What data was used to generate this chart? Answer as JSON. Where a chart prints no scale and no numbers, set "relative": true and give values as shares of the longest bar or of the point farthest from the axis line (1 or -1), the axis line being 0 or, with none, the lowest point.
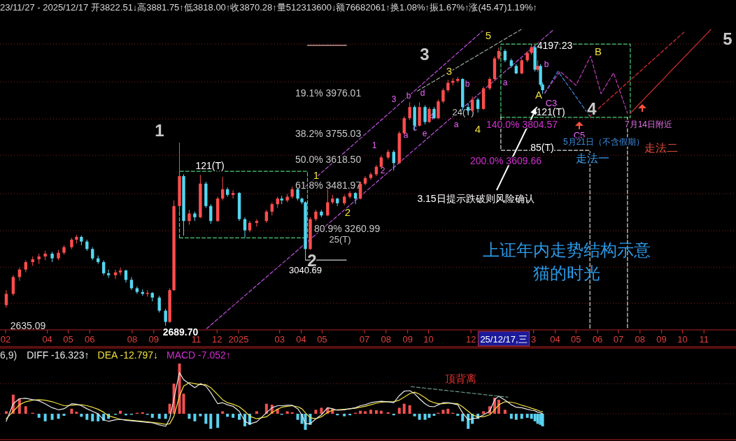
{
  "chart_data": [
    {
      "type": "candlestick",
      "title": "23/11/27 - 2025/12/17 开3822.51↓高3881.75↑低3818.00↑收3870.28↑量512313600↓额76682061↑换1.08%↑振1.67%↑涨(45.47)1.19%↑",
      "x": [
        "2024-02-02",
        "2024-02-12",
        "2024-02-21",
        "2024-03-01",
        "2024-03-11",
        "2024-03-20",
        "2024-03-29",
        "2024-04-08",
        "2024-04-17",
        "2024-04-25",
        "2024-05-06",
        "2024-05-13",
        "2024-05-20",
        "2024-05-28",
        "2024-06-05",
        "2024-06-13",
        "2024-06-21",
        "2024-06-28",
        "2024-07-08",
        "2024-07-15",
        "2024-07-23",
        "2024-07-31",
        "2024-08-08",
        "2024-08-16",
        "2024-08-23",
        "2024-08-30",
        "2024-09-09",
        "2024-09-18",
        "2024-09-24",
        "2024-09-30",
        "2024-10-08",
        "2024-10-14",
        "2024-10-22",
        "2024-10-30",
        "2024-11-07",
        "2024-11-15",
        "2024-11-22",
        "2024-12-02",
        "2024-12-09",
        "2024-12-16",
        "2024-12-24",
        "2025-01-02",
        "2025-01-10",
        "2025-01-17",
        "2025-01-27",
        "2025-02-10",
        "2025-02-18",
        "2025-02-26",
        "2025-03-04",
        "2025-03-12",
        "2025-03-19",
        "2025-03-27",
        "2025-04-02",
        "2025-04-07",
        "2025-04-14",
        "2025-04-22",
        "2025-04-30",
        "2025-05-09",
        "2025-05-16",
        "2025-05-23",
        "2025-06-02",
        "2025-06-10",
        "2025-06-18",
        "2025-06-25",
        "2025-07-02",
        "2025-07-10",
        "2025-07-18",
        "2025-07-25",
        "2025-08-04",
        "2025-08-12",
        "2025-08-20",
        "2025-08-27",
        "2025-09-04",
        "2025-09-11",
        "2025-09-18",
        "2025-09-26",
        "2025-10-02",
        "2025-10-09",
        "2025-10-15",
        "2025-10-22",
        "2025-10-29",
        "2025-11-05",
        "2025-11-12",
        "2025-11-19",
        "2025-11-27",
        "2025-12-03",
        "2025-12-11",
        "2025-12-19",
        "2025-12-28",
        "2026-01-04",
        "2026-01-10",
        "2026-01-19",
        "2026-01-28",
        "2026-02-04",
        "2026-02-12",
        "2026-02-20",
        "2026-02-26",
        "2026-03-03",
        "2026-03-07",
        "2026-03-11",
        "2026-03-14"
      ],
      "ohlc": [
        [
          2800,
          2880,
          2786,
          2860
        ],
        [
          2860,
          2960,
          2850,
          2950
        ],
        [
          2950,
          3000,
          2930,
          2990
        ],
        [
          2990,
          3040,
          2975,
          3030
        ],
        [
          3030,
          3060,
          3010,
          3045
        ],
        [
          3045,
          3075,
          3020,
          3060
        ],
        [
          3060,
          3090,
          3040,
          3075
        ],
        [
          3075,
          3085,
          3030,
          3050
        ],
        [
          3050,
          3095,
          3040,
          3080
        ],
        [
          3080,
          3120,
          3070,
          3110
        ],
        [
          3110,
          3160,
          3100,
          3150
        ],
        [
          3150,
          3175,
          3130,
          3165
        ],
        [
          3165,
          3172,
          3120,
          3140
        ],
        [
          3140,
          3150,
          3090,
          3100
        ],
        [
          3100,
          3110,
          3040,
          3050
        ],
        [
          3050,
          3065,
          3020,
          3030
        ],
        [
          3030,
          3040,
          2960,
          2970
        ],
        [
          2970,
          2990,
          2945,
          2960
        ],
        [
          2960,
          2990,
          2940,
          2975
        ],
        [
          2975,
          3000,
          2960,
          2985
        ],
        [
          2985,
          2990,
          2920,
          2935
        ],
        [
          2935,
          2950,
          2880,
          2890
        ],
        [
          2890,
          2900,
          2860,
          2870
        ],
        [
          2870,
          2885,
          2850,
          2860
        ],
        [
          2860,
          2880,
          2845,
          2865
        ],
        [
          2865,
          2870,
          2820,
          2840
        ],
        [
          2840,
          2850,
          2760,
          2770
        ],
        [
          2770,
          2780,
          2689.7,
          2710
        ],
        [
          2710,
          2890,
          2705,
          2880
        ],
        [
          2880,
          3360,
          2875,
          3330
        ],
        [
          3330,
          3670,
          3300,
          3490
        ],
        [
          3490,
          3500,
          3172,
          3250
        ],
        [
          3250,
          3310,
          3230,
          3290
        ],
        [
          3290,
          3300,
          3250,
          3270
        ],
        [
          3270,
          3497,
          3265,
          3450
        ],
        [
          3450,
          3460,
          3320,
          3330
        ],
        [
          3330,
          3340,
          3235,
          3250
        ],
        [
          3250,
          3380,
          3245,
          3370
        ],
        [
          3370,
          3486,
          3360,
          3420
        ],
        [
          3420,
          3430,
          3380,
          3390
        ],
        [
          3390,
          3415,
          3370,
          3400
        ],
        [
          3400,
          3405,
          3250,
          3260
        ],
        [
          3260,
          3270,
          3160,
          3200
        ],
        [
          3200,
          3250,
          3190,
          3240
        ],
        [
          3240,
          3260,
          3220,
          3250
        ],
        [
          3250,
          3310,
          3240,
          3300
        ],
        [
          3300,
          3350,
          3280,
          3340
        ],
        [
          3340,
          3380,
          3320,
          3370
        ],
        [
          3370,
          3385,
          3340,
          3360
        ],
        [
          3360,
          3395,
          3350,
          3380
        ],
        [
          3380,
          3434,
          3370,
          3420
        ],
        [
          3420,
          3425,
          3360,
          3370
        ],
        [
          3370,
          3375,
          3340,
          3350
        ],
        [
          3350,
          3355,
          3040.69,
          3100
        ],
        [
          3100,
          3270,
          3095,
          3260
        ],
        [
          3260,
          3310,
          3250,
          3300
        ],
        [
          3300,
          3310,
          3270,
          3280
        ],
        [
          3280,
          3420,
          3275,
          3350
        ],
        [
          3350,
          3390,
          3340,
          3370
        ],
        [
          3370,
          3375,
          3330,
          3345
        ],
        [
          3345,
          3390,
          3335,
          3380
        ],
        [
          3380,
          3410,
          3370,
          3400
        ],
        [
          3400,
          3405,
          3340,
          3370
        ],
        [
          3370,
          3460,
          3365,
          3450
        ],
        [
          3450,
          3490,
          3440,
          3480
        ],
        [
          3480,
          3510,
          3470,
          3500
        ],
        [
          3500,
          3550,
          3490,
          3540
        ],
        [
          3540,
          3600,
          3530,
          3590
        ],
        [
          3590,
          3632,
          3580,
          3620
        ],
        [
          3620,
          3630,
          3520,
          3560
        ],
        [
          3560,
          3730,
          3555,
          3720
        ],
        [
          3720,
          3810,
          3710,
          3800
        ],
        [
          3800,
          3886,
          3790,
          3860
        ],
        [
          3860,
          3870,
          3737,
          3760
        ],
        [
          3760,
          3886,
          3755,
          3860
        ],
        [
          3860,
          3870,
          3767,
          3780
        ],
        [
          3780,
          3860,
          3775,
          3850
        ],
        [
          3850,
          3860,
          3796,
          3800
        ],
        [
          3800,
          3900,
          3795,
          3890
        ],
        [
          3890,
          3960,
          3880,
          3950
        ],
        [
          3950,
          4006,
          3940,
          3990
        ],
        [
          3990,
          4015,
          3975,
          4000
        ],
        [
          4000,
          4021,
          3990,
          4010
        ],
        [
          4010,
          4015,
          3841,
          3860
        ],
        [
          3860,
          3880,
          3826,
          3840
        ],
        [
          3840,
          3916,
          3835,
          3900
        ],
        [
          3900,
          3910,
          3830,
          3850
        ],
        [
          3850,
          3970,
          3845,
          3960
        ],
        [
          3960,
          4020,
          3950,
          4010
        ],
        [
          4010,
          4130,
          4000,
          4120
        ],
        [
          4120,
          4178,
          4110,
          4160
        ],
        [
          4160,
          4170,
          4100,
          4110
        ],
        [
          4110,
          4120,
          4070,
          4080
        ],
        [
          4080,
          4090,
          4036,
          4040
        ],
        [
          4040,
          4120,
          4035,
          4110
        ],
        [
          4110,
          4160,
          4100,
          4150
        ],
        [
          4150,
          4197.23,
          4140,
          4180
        ],
        [
          4180,
          4190,
          4050,
          4060
        ],
        [
          4060,
          4110,
          4050,
          4080
        ],
        [
          4080,
          4090,
          3970,
          3980
        ],
        [
          3980,
          3990,
          3930,
          3950
        ]
      ],
      "colors": [
        "#ff4d4d",
        "#ff4d4d",
        "#ff4d4d",
        "#ff4d4d",
        "#ff4d4d",
        "#ff4d4d",
        "#ff4d4d",
        "#54d6f0",
        "#ff4d4d",
        "#ff4d4d",
        "#ff4d4d",
        "#ff4d4d",
        "#54d6f0",
        "#54d6f0",
        "#54d6f0",
        "#54d6f0",
        "#54d6f0",
        "#54d6f0",
        "#ff4d4d",
        "#ff4d4d",
        "#54d6f0",
        "#54d6f0",
        "#54d6f0",
        "#54d6f0",
        "#ff4d4d",
        "#54d6f0",
        "#54d6f0",
        "#54d6f0",
        "#ff4d4d",
        "#ff4d4d",
        "#ff4d4d",
        "#54d6f0",
        "#ff4d4d",
        "#54d6f0",
        "#ff4d4d",
        "#54d6f0",
        "#54d6f0",
        "#ff4d4d",
        "#ff4d4d",
        "#54d6f0",
        "#ff4d4d",
        "#54d6f0",
        "#54d6f0",
        "#ff4d4d",
        "#ff4d4d",
        "#ff4d4d",
        "#ff4d4d",
        "#ff4d4d",
        "#54d6f0",
        "#ff4d4d",
        "#ff4d4d",
        "#54d6f0",
        "#54d6f0",
        "#54d6f0",
        "#ff4d4d",
        "#ff4d4d",
        "#54d6f0",
        "#ff4d4d",
        "#ff4d4d",
        "#54d6f0",
        "#ff4d4d",
        "#ff4d4d",
        "#54d6f0",
        "#ff4d4d",
        "#ff4d4d",
        "#ff4d4d",
        "#ff4d4d",
        "#ff4d4d",
        "#ff4d4d",
        "#54d6f0",
        "#ff4d4d",
        "#ff4d4d",
        "#ff4d4d",
        "#54d6f0",
        "#ff4d4d",
        "#54d6f0",
        "#ff4d4d",
        "#54d6f0",
        "#ff4d4d",
        "#ff4d4d",
        "#ff4d4d",
        "#ff4d4d",
        "#ff4d4d",
        "#54d6f0",
        "#54d6f0",
        "#ff4d4d",
        "#54d6f0",
        "#ff4d4d",
        "#ff4d4d",
        "#ff4d4d",
        "#ff4d4d",
        "#54d6f0",
        "#54d6f0",
        "#54d6f0",
        "#ff4d4d",
        "#ff4d4d",
        "#ff4d4d",
        "#54d6f0",
        "#ff4d4d",
        "#54d6f0",
        "#54d6f0"
      ],
      "xlim": [
        "2024-01-24",
        "2026-12-17"
      ],
      "xticks": [
        {
          "value": "2024-02-01",
          "label": "02"
        },
        {
          "value": "2024-04-01",
          "label": "04"
        },
        {
          "value": "2024-05-01",
          "label": "05"
        },
        {
          "value": "2024-06-01",
          "label": "06"
        },
        {
          "value": "2024-08-01",
          "label": "08"
        },
        {
          "value": "2024-09-01",
          "label": "09"
        },
        {
          "value": "2024-11-01",
          "label": "11"
        },
        {
          "value": "2024-12-01",
          "label": "12"
        },
        {
          "value": "2025-01-01",
          "label": "2025"
        },
        {
          "value": "2025-03-01",
          "label": "03"
        },
        {
          "value": "2025-04-01",
          "label": "04"
        },
        {
          "value": "2025-05-01",
          "label": "05"
        },
        {
          "value": "2025-07-01",
          "label": "07"
        },
        {
          "value": "2025-08-01",
          "label": "08"
        },
        {
          "value": "2025-09-01",
          "label": "09"
        },
        {
          "value": "2025-10-01",
          "label": "10"
        },
        {
          "value": "2025-12-01",
          "label": "12"
        },
        {
          "value": "2026-03-01",
          "label": "3"
        },
        {
          "value": "2026-04-01",
          "label": "04"
        },
        {
          "value": "2026-05-01",
          "label": "05"
        },
        {
          "value": "2026-06-01",
          "label": "06"
        },
        {
          "value": "2026-07-01",
          "label": "07"
        },
        {
          "value": "2026-08-01",
          "label": "08"
        },
        {
          "value": "2026-09-01",
          "label": "09"
        },
        {
          "value": "2026-10-01",
          "label": "10"
        },
        {
          "value": "2026-11-01",
          "label": "11"
        }
      ],
      "yticks": [
        {
          "value": 2809,
          "label": null
        },
        {
          "value": 3003,
          "label": null
        },
        {
          "value": 3198,
          "label": null
        },
        {
          "value": 3396,
          "label": null
        },
        {
          "value": 3602,
          "label": null
        },
        {
          "value": 3796,
          "label": null
        },
        {
          "value": 3995,
          "label": null
        },
        {
          "value": 4197,
          "label": null
        }
      ],
      "grid": "y",
      "tick_labels": "x",
      "series": [
        {
          "type": "line",
          "color": "#c050e0",
          "line_style": "dashed",
          "x": [
            "2024-11-16",
            "2026-03-30"
          ],
          "values": [
            2674,
            4275
          ]
        },
        {
          "type": "line",
          "color": "#c050e0",
          "line_style": "dashed",
          "x": [
            "2025-04-06",
            "2025-12-18"
          ],
          "values": [
            3430,
            4268
          ]
        },
        {
          "type": "line",
          "color": "#9aa89a",
          "line_style": "dashed",
          "x": [
            "2025-09-15",
            "2026-02-11"
          ],
          "values": [
            3946,
            4275
          ]
        },
        {
          "type": "line",
          "color": "#4ad07a",
          "line_style": "dashed",
          "x": [
            "2024-10-08",
            "2024-10-08",
            "2025-04-10",
            "2025-04-10"
          ],
          "values": [
            3160,
            3516,
            3516,
            3160
          ]
        },
        {
          "type": "line",
          "color": "#4ad07a",
          "line_style": "dashed",
          "x": [
            "2024-10-08",
            "2025-04-10"
          ],
          "values": [
            3160,
            3160
          ]
        },
        {
          "type": "line",
          "color": "#4ad07a",
          "line_style": "dashed",
          "x": [
            "2026-01-13",
            "2026-01-13",
            "2026-07-18",
            "2026-07-18"
          ],
          "values": [
            3805,
            4197,
            4197,
            3805
          ]
        },
        {
          "type": "line",
          "color": "#4ad07a",
          "line_style": "dashed",
          "x": [
            "2026-01-13",
            "2026-07-18"
          ],
          "values": [
            3805,
            3805
          ]
        },
        {
          "type": "line",
          "color": "#e0e0e0",
          "line_style": "dashed",
          "x": [
            "2026-01-13",
            "2026-01-13",
            "2026-05-21",
            "2026-05-21"
          ],
          "values": [
            3805,
            3628,
            3628,
            2670
          ]
        },
        {
          "type": "line",
          "color": "#e0e0e0",
          "line_style": "dashed",
          "x": [
            "2026-07-14",
            "2026-07-14"
          ],
          "values": [
            3805,
            2670
          ]
        },
        {
          "type": "line",
          "color": "#d0d0d0",
          "line_style": "solid",
          "x": [
            "2025-04-07",
            "2025-06-05"
          ],
          "values": [
            3041,
            3041
          ]
        },
        {
          "type": "line",
          "color": "#f0b0b0",
          "line_style": "solid",
          "x": [
            "2025-04-10",
            "2025-06-05"
          ],
          "values": [
            4190,
            4190
          ]
        },
        {
          "type": "line",
          "color": "#3c8ce0",
          "line_style": "dashed",
          "x": [
            "2026-03-17",
            "2026-04-05",
            "2026-05-21"
          ],
          "values": [
            3935,
            4051,
            3810
          ]
        },
        {
          "type": "line",
          "color": "#c040c0",
          "line_style": "dashed",
          "x": [
            "2026-03-17",
            "2026-04-08",
            "2026-05-01",
            "2026-05-22",
            "2026-06-06",
            "2026-06-24",
            "2026-07-14"
          ],
          "values": [
            3935,
            4051,
            3976,
            4133,
            3931,
            4043,
            3826
          ]
        },
        {
          "type": "line",
          "color": "#e03030",
          "line_style": "solid",
          "x": [
            "2026-07-18",
            "2026-11-11"
          ],
          "values": [
            3826,
            4275
          ]
        },
        {
          "type": "line",
          "color": "#e03030",
          "line_style": "dashed",
          "x": [
            "2026-05-21",
            "2026-10-03"
          ],
          "values": [
            3811,
            4260
          ]
        }
      ],
      "annotations": [
        "1",
        "2",
        "3",
        "4",
        "5",
        "1",
        "2",
        "3",
        "4",
        "5",
        "A",
        "B",
        "1",
        "2",
        "3",
        "a",
        "b",
        "c",
        "d",
        "e",
        "4",
        "a",
        "b",
        "a",
        "b",
        "C3",
        "C5",
        "121(T)",
        "121(T)",
        "25(T)",
        "24(T)",
        "85(T)",
        "140.0% 3804.57",
        "200.0% 3609.66",
        "19.1% 3976.01",
        "38.2% 3755.03",
        "50.0% 3618.50",
        "61.8% 3481.97",
        "80.9% 3260.99",
        {
          "text": "4197.23",
          "x": "2026-02-26",
          "y": 4197.23
        },
        {
          "text": "2689.70",
          "x": "2024-09-18",
          "y": 2689.7
        },
        {
          "text": "3040.69",
          "x": "2025-04-07",
          "y": 3040.69
        },
        "2635.09",
        "5月21日（不含假期）",
        "走法一",
        "走法二",
        "7月14日附近",
        "3.15日提示跌破则风险确认",
        "上证年内走势结构示意",
        "猫的时光",
        "25/12/17,三"
      ]
    },
    {
      "type": "bar",
      "relative": true,
      "tick_labels": false,
      "legend": "top left",
      "x": [
        "2024-02-02",
        "2024-02-12",
        "2024-02-21",
        "2024-03-01",
        "2024-03-11",
        "2024-03-20",
        "2024-03-29",
        "2024-04-08",
        "2024-04-17",
        "2024-04-25",
        "2024-05-06",
        "2024-05-13",
        "2024-05-20",
        "2024-05-28",
        "2024-06-05",
        "2024-06-13",
        "2024-06-21",
        "2024-06-28",
        "2024-07-08",
        "2024-07-15",
        "2024-07-23",
        "2024-07-31",
        "2024-08-08",
        "2024-08-16",
        "2024-08-23",
        "2024-08-30",
        "2024-09-09",
        "2024-09-18",
        "2024-09-24",
        "2024-09-30",
        "2024-10-08",
        "2024-10-14",
        "2024-10-22",
        "2024-10-30",
        "2024-11-07",
        "2024-11-15",
        "2024-11-22",
        "2024-12-02",
        "2024-12-09",
        "2024-12-16",
        "2024-12-24",
        "2025-01-02",
        "2025-01-10",
        "2025-01-17",
        "2025-01-27",
        "2025-02-10",
        "2025-02-18",
        "2025-02-26",
        "2025-03-04",
        "2025-03-12",
        "2025-03-19",
        "2025-03-27",
        "2025-04-02",
        "2025-04-07",
        "2025-04-14",
        "2025-04-22",
        "2025-04-30",
        "2025-05-09",
        "2025-05-16",
        "2025-05-23",
        "2025-06-02",
        "2025-06-10",
        "2025-06-18",
        "2025-06-25",
        "2025-07-02",
        "2025-07-10",
        "2025-07-18",
        "2025-07-25",
        "2025-08-04",
        "2025-08-12",
        "2025-08-20",
        "2025-08-27",
        "2025-09-04",
        "2025-09-11",
        "2025-09-18",
        "2025-09-26",
        "2025-10-02",
        "2025-10-09",
        "2025-10-15",
        "2025-10-22",
        "2025-10-29",
        "2025-11-05",
        "2025-11-12",
        "2025-11-19",
        "2025-11-27",
        "2025-12-03",
        "2025-12-11",
        "2025-12-19",
        "2025-12-28",
        "2026-01-04",
        "2026-01-10",
        "2026-01-19",
        "2026-01-28",
        "2026-02-04",
        "2026-02-12",
        "2026-02-20",
        "2026-02-26",
        "2026-03-03",
        "2026-03-07",
        "2026-03-11",
        "2026-03-14"
      ],
      "xlim": [
        "2024-01-24",
        "2026-12-17"
      ],
      "values": [
        0.05,
        0.38,
        0.3,
        0.15,
        0.02,
        -0.08,
        -0.15,
        -0.12,
        -0.1,
        -0.04,
        0.1,
        0.04,
        -0.06,
        -0.12,
        -0.15,
        -0.15,
        -0.14,
        -0.1,
        -0.02,
        0.06,
        -0.03,
        -0.02,
        0.02,
        0.03,
        -0.02,
        -0.08,
        -0.1,
        -0.1,
        0.2,
        0.6,
        1,
        0.4,
        -0.1,
        -0.15,
        -0.05,
        -0.2,
        -0.3,
        -0.28,
        0.05,
        -0.06,
        -0.08,
        -0.12,
        -0.25,
        -0.22,
        0.05,
        0.2,
        0.18,
        0.1,
        -0.02,
        0.05,
        0.03,
        -0.12,
        -0.2,
        -0.32,
        -0.22,
        0.08,
        0.12,
        0.12,
        0.1,
        -0.03,
        -0.05,
        -0.03,
        0.02,
        0.06,
        0.05,
        0.08,
        0.07,
        0.06,
        0.03,
        -0.03,
        0.12,
        0.2,
        0.17,
        -0.05,
        -0.12,
        -0.12,
        -0.08,
        -0.04,
        0.02,
        0.08,
        0.1,
        0.02,
        -0.04,
        -0.15,
        -0.3,
        -0.2,
        -0.1,
        0.05,
        0.15,
        0.32,
        0.28,
        0.08,
        -0.1,
        -0.12,
        -0.1,
        -0.08,
        -0.1,
        -0.15,
        -0.2,
        -0.22,
        -0.25
      ],
      "colors": [
        "#f05050",
        "#f05050",
        "#f05050",
        "#f05050",
        "#f05050",
        "#5ad2f0",
        "#5ad2f0",
        "#5ad2f0",
        "#5ad2f0",
        "#5ad2f0",
        "#f05050",
        "#f05050",
        "#5ad2f0",
        "#5ad2f0",
        "#5ad2f0",
        "#5ad2f0",
        "#5ad2f0",
        "#5ad2f0",
        "#5ad2f0",
        "#f05050",
        "#5ad2f0",
        "#5ad2f0",
        "#f05050",
        "#f05050",
        "#5ad2f0",
        "#5ad2f0",
        "#5ad2f0",
        "#5ad2f0",
        "#f05050",
        "#f05050",
        "#f05050",
        "#f05050",
        "#5ad2f0",
        "#5ad2f0",
        "#5ad2f0",
        "#5ad2f0",
        "#5ad2f0",
        "#5ad2f0",
        "#f05050",
        "#5ad2f0",
        "#5ad2f0",
        "#5ad2f0",
        "#5ad2f0",
        "#5ad2f0",
        "#f05050",
        "#f05050",
        "#f05050",
        "#f05050",
        "#5ad2f0",
        "#f05050",
        "#f05050",
        "#5ad2f0",
        "#5ad2f0",
        "#5ad2f0",
        "#5ad2f0",
        "#f05050",
        "#f05050",
        "#f05050",
        "#f05050",
        "#5ad2f0",
        "#5ad2f0",
        "#5ad2f0",
        "#f05050",
        "#f05050",
        "#f05050",
        "#f05050",
        "#f05050",
        "#f05050",
        "#f05050",
        "#5ad2f0",
        "#f05050",
        "#f05050",
        "#f05050",
        "#5ad2f0",
        "#5ad2f0",
        "#5ad2f0",
        "#5ad2f0",
        "#5ad2f0",
        "#f05050",
        "#f05050",
        "#f05050",
        "#f05050",
        "#5ad2f0",
        "#5ad2f0",
        "#5ad2f0",
        "#5ad2f0",
        "#5ad2f0",
        "#f05050",
        "#f05050",
        "#f05050",
        "#f05050",
        "#f05050",
        "#5ad2f0",
        "#5ad2f0",
        "#5ad2f0",
        "#5ad2f0",
        "#5ad2f0",
        "#5ad2f0",
        "#5ad2f0",
        "#5ad2f0",
        "#5ad2f0"
      ],
      "series": [
        {
          "type": "line",
          "name": "DIFF -16.323↑",
          "color": "#e8e8e8",
          "values": [
            -0.15,
            0.2,
            0.3,
            0.31,
            0.28,
            0.26,
            0.2,
            0.12,
            0.08,
            0.1,
            0.2,
            0.19,
            0.16,
            0.1,
            0.05,
            0,
            -0.12,
            -0.15,
            -0.12,
            -0.11,
            -0.13,
            -0.14,
            -0.15,
            -0.16,
            -0.17,
            -0.18,
            -0.22,
            -0.25,
            -0.1,
            0.3,
            0.82,
            0.68,
            0.6,
            0.52,
            0.6,
            0.55,
            0.42,
            0.2,
            0.22,
            0.18,
            0.15,
            0.05,
            -0.15,
            -0.2,
            -0.16,
            0.02,
            0.12,
            0.16,
            0.16,
            0.17,
            0.17,
            0.1,
            -0.02,
            -0.2,
            -0.2,
            -0.1,
            -0.02,
            0.12,
            0.1,
            0.07,
            0.08,
            0.1,
            0.12,
            0.16,
            0.18,
            0.22,
            0.24,
            0.25,
            0.24,
            0.22,
            0.36,
            0.45,
            0.46,
            0.4,
            0.3,
            0.2,
            0.15,
            0.14,
            0.18,
            0.22,
            0.22,
            0.2,
            0.18,
            0.02,
            -0.12,
            -0.1,
            -0.08,
            -0.02,
            0.05,
            0.28,
            0.35,
            0.27,
            0.18,
            0.13,
            0.12,
            0.09,
            0.07,
            0.06,
            0.03,
            0.02,
            0
          ]
        },
        {
          "type": "line",
          "name": "DEA -12.797↓",
          "color": "#f0e040",
          "values": [
            -0.1,
            0.05,
            0.18,
            0.24,
            0.27,
            0.28,
            0.27,
            0.24,
            0.2,
            0.16,
            0.17,
            0.18,
            0.18,
            0.16,
            0.13,
            0.09,
            0.03,
            -0.04,
            -0.08,
            -0.11,
            -0.12,
            -0.13,
            -0.14,
            -0.15,
            -0.16,
            -0.17,
            -0.19,
            -0.21,
            -0.2,
            -0.05,
            0.35,
            0.55,
            0.62,
            0.6,
            0.58,
            0.58,
            0.52,
            0.38,
            0.28,
            0.22,
            0.19,
            0.14,
            0.05,
            -0.05,
            -0.1,
            -0.06,
            0.02,
            0.09,
            0.13,
            0.15,
            0.16,
            0.14,
            0.1,
            0.02,
            -0.08,
            -0.1,
            -0.06,
            0.03,
            0.07,
            0.08,
            0.09,
            0.1,
            0.11,
            0.13,
            0.15,
            0.18,
            0.21,
            0.23,
            0.24,
            0.24,
            0.27,
            0.33,
            0.4,
            0.43,
            0.39,
            0.32,
            0.26,
            0.22,
            0.2,
            0.2,
            0.21,
            0.21,
            0.2,
            0.14,
            0.05,
            -0.02,
            -0.06,
            -0.06,
            -0.02,
            0.08,
            0.18,
            0.24,
            0.23,
            0.21,
            0.17,
            0.14,
            0.11,
            0.09,
            0.07,
            0.05,
            0.04
          ]
        },
        {
          "type": "line",
          "color": "#6a9a8a",
          "line_style": "dashed",
          "x": [
            "2025-09-06",
            "2026-01-23"
          ],
          "values": [
            0.54,
            0.33
          ]
        }
      ],
      "ref_lines": [
        {
          "axis": "y",
          "value": 0,
          "color": "#8b2020",
          "line_style": "dotted"
        },
        {
          "axis": "y",
          "value": 0.6,
          "color": "#8b2020",
          "line_style": "dotted"
        }
      ],
      "annotations": [
        "6,9)",
        "MACD -7.052↑",
        "顶背离"
      ]
    }
  ]
}
